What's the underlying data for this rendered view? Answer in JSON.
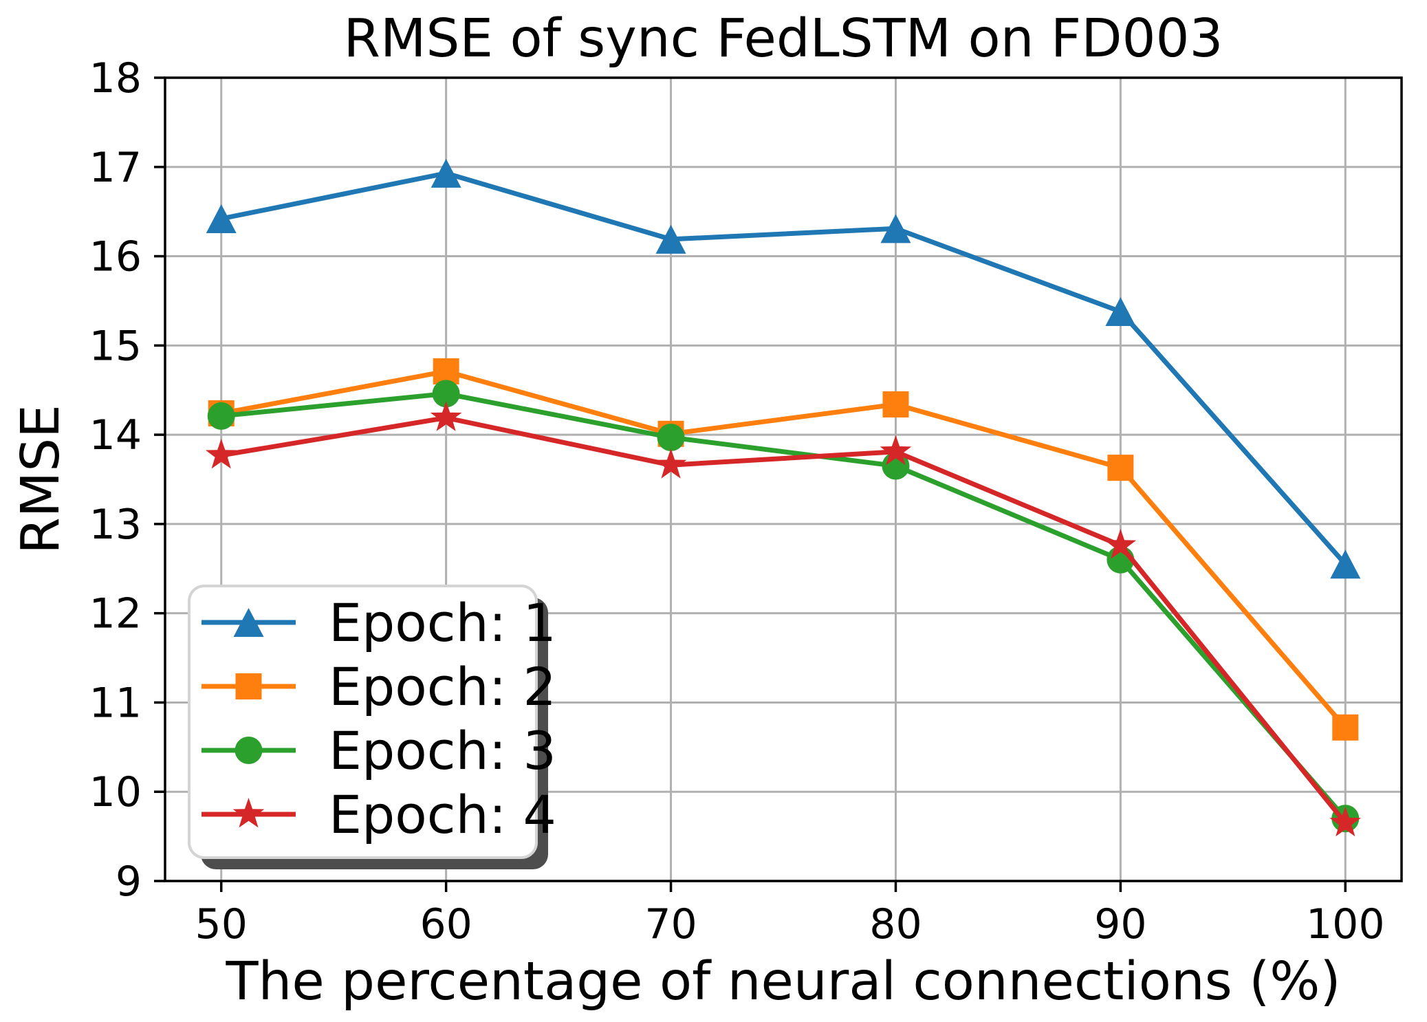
{
  "page": {
    "background": "#ffffff"
  },
  "chart_data": {
    "type": "line",
    "title": "RMSE of sync FedLSTM on FD003",
    "xlabel": "The percentage of neural connections (%)",
    "ylabel": "RMSE",
    "x": [
      50,
      60,
      70,
      80,
      90,
      100
    ],
    "series": [
      {
        "name": "Epoch: 1",
        "color": "#1f77b4",
        "marker": "triangle-up",
        "values": [
          16.42,
          16.93,
          16.19,
          16.31,
          15.38,
          12.55
        ]
      },
      {
        "name": "Epoch: 2",
        "color": "#ff7f0e",
        "marker": "square",
        "values": [
          14.24,
          14.71,
          14.01,
          14.34,
          13.63,
          10.72
        ]
      },
      {
        "name": "Epoch: 3",
        "color": "#2ca02c",
        "marker": "circle",
        "values": [
          14.21,
          14.46,
          13.97,
          13.65,
          12.6,
          9.7
        ]
      },
      {
        "name": "Epoch: 4",
        "color": "#d62728",
        "marker": "star",
        "values": [
          13.77,
          14.19,
          13.66,
          13.81,
          12.76,
          9.65
        ]
      }
    ],
    "xlim": [
      47.5,
      102.5
    ],
    "ylim": [
      9,
      18
    ],
    "xticks": [
      50,
      60,
      70,
      80,
      90,
      100
    ],
    "yticks": [
      9,
      10,
      11,
      12,
      13,
      14,
      15,
      16,
      17,
      18
    ],
    "grid": true,
    "grid_color": "#b0b0b0",
    "spine_color": "#000000",
    "background_color": "#ffffff",
    "legend": {
      "position": "lower left",
      "fancybox": true,
      "shadow": true,
      "items": [
        "Epoch: 1",
        "Epoch: 2",
        "Epoch: 3",
        "Epoch: 4"
      ],
      "border_color": "#d4d4d4",
      "shadow_color": "#4d4d4d",
      "fill_color": "#ffffff"
    }
  }
}
